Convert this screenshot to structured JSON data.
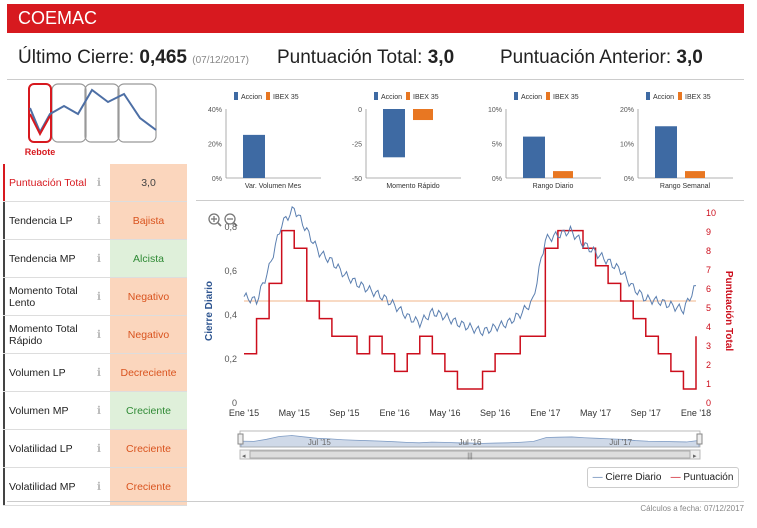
{
  "header": {
    "title": "COEMAC"
  },
  "stats": {
    "last_close_label": "Último Cierre:",
    "last_close_value": "0,465",
    "last_close_date": "(07/12/2017)",
    "total_label": "Puntuación Total:",
    "total_value": "3,0",
    "prev_label": "Puntuación Anterior:",
    "prev_value": "3,0"
  },
  "logo": {
    "label": "Rebote"
  },
  "rows": [
    {
      "label": "Puntuación Total",
      "value": "3,0",
      "style": "neu",
      "red": true
    },
    {
      "label": "Tendencia LP",
      "value": "Bajista",
      "style": "neg"
    },
    {
      "label": "Tendencia MP",
      "value": "Alcista",
      "style": "pos"
    },
    {
      "label": "Momento Total Lento",
      "value": "Negativo",
      "style": "neg"
    },
    {
      "label": "Momento Total Rápido",
      "value": "Negativo",
      "style": "neg"
    },
    {
      "label": "Volumen LP",
      "value": "Decreciente",
      "style": "neg"
    },
    {
      "label": "Volumen MP",
      "value": "Creciente",
      "style": "pos"
    },
    {
      "label": "Volatilidad LP",
      "value": "Creciente",
      "style": "neg"
    },
    {
      "label": "Volatilidad MP",
      "value": "Creciente",
      "style": "neg"
    }
  ],
  "info_icon": "info-icon",
  "colors": {
    "accion": "#3e6aa3",
    "ibex": "#e87722",
    "price": "#5b7fb0",
    "score": "#cc0e1c",
    "red": "#d7191f"
  },
  "chart_data": [
    {
      "type": "bar",
      "title": "Var. Volumen Mes",
      "legend": [
        "Accion",
        "IBEX 35"
      ],
      "yticks": [
        "40%",
        "20%",
        "0%"
      ],
      "ylim": [
        0,
        40
      ],
      "series": [
        {
          "name": "Accion",
          "values": [
            25
          ]
        },
        {
          "name": "IBEX 35",
          "values": [
            0
          ]
        }
      ]
    },
    {
      "type": "bar",
      "title": "Momento Rápido",
      "legend": [
        "Accion",
        "IBEX 35"
      ],
      "yticks": [
        "0",
        "-25",
        "-50"
      ],
      "ylim": [
        -50,
        0
      ],
      "series": [
        {
          "name": "Accion",
          "values": [
            -35
          ]
        },
        {
          "name": "IBEX 35",
          "values": [
            -8
          ]
        }
      ]
    },
    {
      "type": "bar",
      "title": "Rango Diario",
      "legend": [
        "Accion",
        "IBEX 35"
      ],
      "yticks": [
        "10%",
        "5%",
        "0%"
      ],
      "ylim": [
        0,
        10
      ],
      "series": [
        {
          "name": "Accion",
          "values": [
            6
          ]
        },
        {
          "name": "IBEX 35",
          "values": [
            1
          ]
        }
      ]
    },
    {
      "type": "bar",
      "title": "Rango Semanal",
      "legend": [
        "Accion",
        "IBEX 35"
      ],
      "yticks": [
        "20%",
        "10%",
        "0%"
      ],
      "ylim": [
        0,
        20
      ],
      "series": [
        {
          "name": "Accion",
          "values": [
            15
          ]
        },
        {
          "name": "IBEX 35",
          "values": [
            2
          ]
        }
      ]
    },
    {
      "type": "line",
      "ylabel": "Cierre Diario",
      "y2label": "Puntuación Total",
      "ylim": [
        0,
        0.8
      ],
      "y2lim": [
        0,
        10
      ],
      "yticks": [
        "0,8",
        "0,6",
        "0,4",
        "0,2",
        "0"
      ],
      "y2ticks": [
        "10",
        "9",
        "8",
        "7",
        "6",
        "5",
        "4",
        "3",
        "2",
        "1",
        "0"
      ],
      "xticks": [
        "Ene '15",
        "May '15",
        "Sep '15",
        "Ene '16",
        "May '16",
        "Sep '16",
        "Ene '17",
        "May '17",
        "Sep '17",
        "Ene '18"
      ],
      "navigator_ticks": [
        "Jul '15",
        "Jul '16",
        "Jul '17"
      ],
      "reference_line": 0.4,
      "series": [
        {
          "name": "Cierre Diario",
          "months": [
            0,
            1,
            2,
            3,
            4,
            5,
            6,
            7,
            8,
            9,
            10,
            11,
            12,
            13,
            14,
            15,
            16,
            17,
            18,
            19,
            20,
            21,
            22,
            23,
            24,
            25,
            26,
            27,
            28,
            29,
            30,
            31,
            32,
            33,
            34,
            35,
            36
          ],
          "values": [
            0.42,
            0.4,
            0.55,
            0.75,
            0.82,
            0.72,
            0.62,
            0.58,
            0.52,
            0.48,
            0.45,
            0.42,
            0.38,
            0.33,
            0.3,
            0.35,
            0.33,
            0.3,
            0.28,
            0.26,
            0.28,
            0.3,
            0.34,
            0.4,
            0.68,
            0.7,
            0.72,
            0.66,
            0.62,
            0.58,
            0.54,
            0.46,
            0.41,
            0.4,
            0.38,
            0.36,
            0.47
          ]
        },
        {
          "name": "Puntuación",
          "months": [
            0,
            1,
            2,
            3,
            4,
            5,
            6,
            7,
            8,
            9,
            10,
            11,
            12,
            13,
            14,
            15,
            16,
            17,
            18,
            19,
            20,
            21,
            22,
            23,
            24,
            25,
            26,
            27,
            28,
            29,
            30,
            31,
            32,
            33,
            34,
            35,
            36
          ],
          "values": [
            2,
            4,
            6,
            9,
            8,
            5,
            4,
            3,
            3,
            2,
            3,
            2,
            1,
            2,
            3,
            2,
            1,
            0,
            0,
            1,
            2,
            2,
            3,
            3,
            8,
            9,
            9,
            8,
            7,
            6,
            5,
            4,
            3,
            2,
            1,
            0,
            3
          ]
        }
      ]
    }
  ],
  "legend": {
    "price": "Cierre Diario",
    "score": "Puntuación"
  },
  "footer": "Cálculos a fecha: 07/12/2017"
}
